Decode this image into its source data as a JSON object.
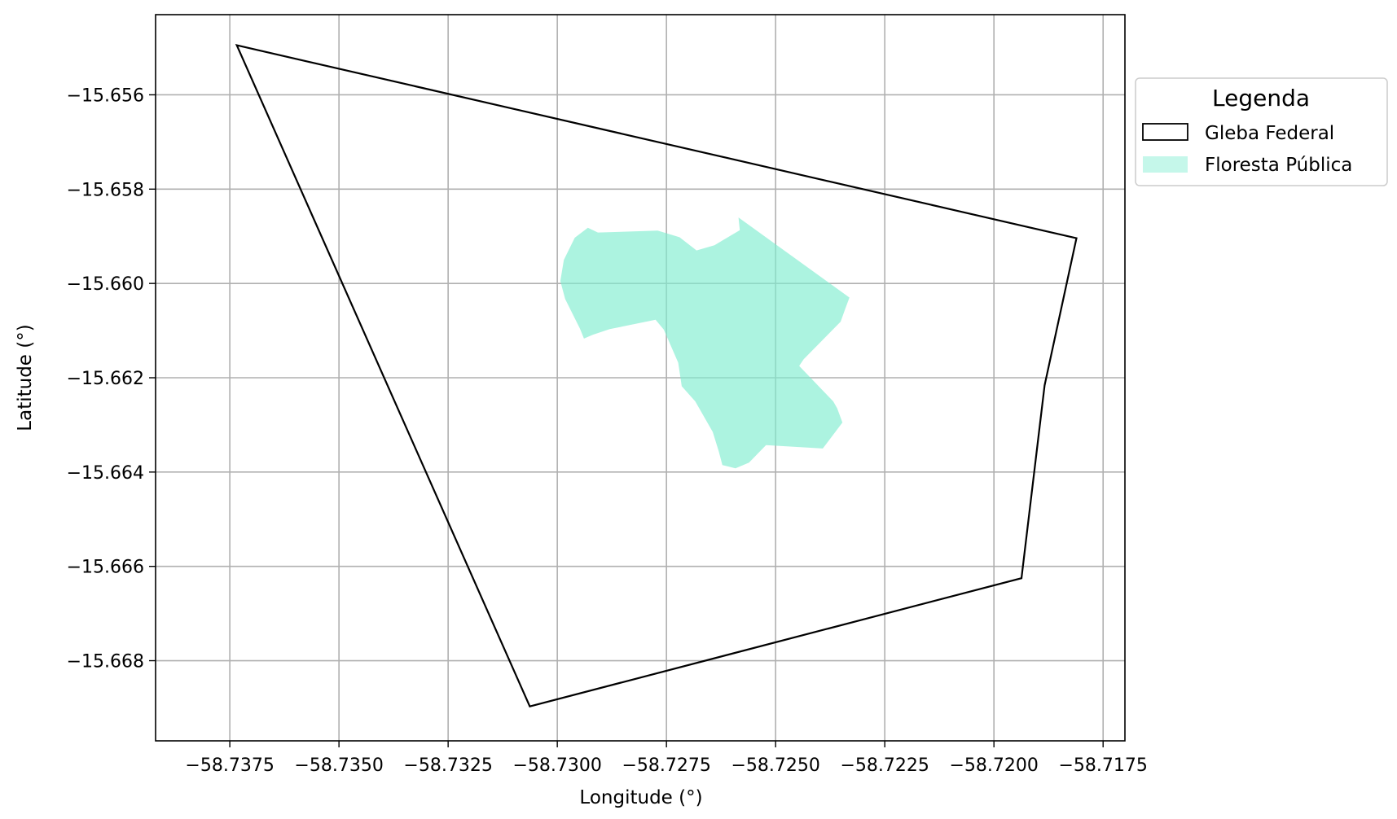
{
  "chart_data": {
    "type": "map",
    "xlabel": "Longitude (°)",
    "ylabel": "Latitude (°)",
    "xlim": [
      -58.7392,
      -58.717
    ],
    "ylim": [
      -15.6697,
      -15.6543
    ],
    "xticks": [
      -58.7375,
      -58.735,
      -58.7325,
      -58.73,
      -58.7275,
      -58.725,
      -58.7225,
      -58.72,
      -58.7175
    ],
    "xtick_labels": [
      "−58.7375",
      "−58.7350",
      "−58.7325",
      "−58.7300",
      "−58.7275",
      "−58.7250",
      "−58.7225",
      "−58.7200",
      "−58.7175"
    ],
    "yticks": [
      -15.656,
      -15.658,
      -15.66,
      -15.662,
      -15.664,
      -15.666,
      -15.668
    ],
    "ytick_labels": [
      "−15.656",
      "−15.658",
      "−15.660",
      "−15.662",
      "−15.664",
      "−15.666",
      "−15.668"
    ],
    "grid": true,
    "legend": {
      "title": "Legenda",
      "placement": "outside-right-top",
      "entries": [
        "Gleba Federal",
        "Floresta Pública"
      ]
    },
    "series": [
      {
        "name": "Gleba Federal",
        "kind": "polygon-outline",
        "color": "#000000",
        "points": [
          [
            -58.73734,
            -15.65495
          ],
          [
            -58.71811,
            -15.65904
          ],
          [
            -58.71884,
            -15.66216
          ],
          [
            -58.71937,
            -15.66625
          ],
          [
            -58.73063,
            -15.66897
          ],
          [
            -58.73734,
            -15.65495
          ]
        ]
      },
      {
        "name": "Floresta Pública",
        "kind": "polygon-fill",
        "color": "#7fedd0",
        "points": [
          [
            -58.72585,
            -15.6586
          ],
          [
            -58.72331,
            -15.6603
          ],
          [
            -58.72341,
            -15.66055
          ],
          [
            -58.72351,
            -15.66081
          ],
          [
            -58.72436,
            -15.66161
          ],
          [
            -58.72446,
            -15.66175
          ],
          [
            -58.72368,
            -15.6625
          ],
          [
            -58.72359,
            -15.66265
          ],
          [
            -58.72347,
            -15.66295
          ],
          [
            -58.72392,
            -15.6635
          ],
          [
            -58.72522,
            -15.66343
          ],
          [
            -58.72561,
            -15.6638
          ],
          [
            -58.72592,
            -15.66392
          ],
          [
            -58.72622,
            -15.66385
          ],
          [
            -58.7263,
            -15.66357
          ],
          [
            -58.72644,
            -15.66315
          ],
          [
            -58.72684,
            -15.6625
          ],
          [
            -58.72715,
            -15.66218
          ],
          [
            -58.72723,
            -15.66168
          ],
          [
            -58.72756,
            -15.66098
          ],
          [
            -58.72775,
            -15.66077
          ],
          [
            -58.7288,
            -15.66097
          ],
          [
            -58.72919,
            -15.66109
          ],
          [
            -58.72939,
            -15.66117
          ],
          [
            -58.72948,
            -15.66096
          ],
          [
            -58.72982,
            -15.66033
          ],
          [
            -58.72993,
            -15.65995
          ],
          [
            -58.72985,
            -15.6595
          ],
          [
            -58.7296,
            -15.65903
          ],
          [
            -58.7293,
            -15.65882
          ],
          [
            -58.72907,
            -15.65892
          ],
          [
            -58.7277,
            -15.65888
          ],
          [
            -58.7272,
            -15.65902
          ],
          [
            -58.72681,
            -15.6593
          ],
          [
            -58.7264,
            -15.65919
          ],
          [
            -58.72582,
            -15.65887
          ]
        ]
      }
    ]
  }
}
